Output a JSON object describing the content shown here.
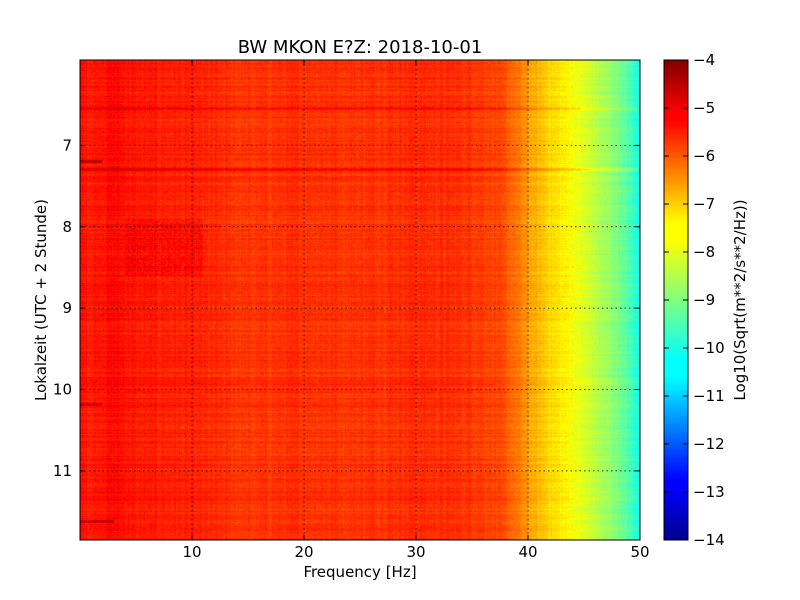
{
  "chart_data": {
    "type": "heatmap",
    "title": "BW MKON E?Z: 2018-10-01",
    "xlabel": "Frequency [Hz]",
    "ylabel": "Lokalzeit (UTC + 2 Stunde)",
    "xlim": [
      0,
      50
    ],
    "ylim": [
      11.85,
      5.95
    ],
    "x_ticks": [
      10,
      20,
      30,
      40,
      50
    ],
    "x_tick_labels": [
      "10",
      "20",
      "30",
      "40",
      "50"
    ],
    "y_ticks": [
      7,
      8,
      9,
      10,
      11
    ],
    "y_tick_labels": [
      "7",
      "8",
      "9",
      "10",
      "11"
    ],
    "grid": true,
    "colormap": "jet",
    "colorbar": {
      "label": "Log10(Sqrt(m**2/s**2/Hz))",
      "range": [
        -14,
        -4
      ],
      "ticks": [
        -4,
        -5,
        -6,
        -7,
        -8,
        -9,
        -10,
        -11,
        -12,
        -13,
        -14
      ],
      "tick_labels": [
        "−4",
        "−5",
        "−6",
        "−7",
        "−8",
        "−9",
        "−10",
        "−11",
        "−12",
        "−13",
        "−14"
      ]
    },
    "frequency_profile": {
      "frequency_hz": [
        0,
        1,
        3,
        5,
        10,
        15,
        20,
        25,
        30,
        35,
        37,
        38,
        39,
        40,
        41,
        42,
        43,
        44,
        45,
        46,
        47,
        48,
        49,
        50
      ],
      "level": [
        -5.4,
        -5.5,
        -5.3,
        -5.5,
        -5.6,
        -5.8,
        -5.7,
        -5.75,
        -5.65,
        -5.75,
        -5.9,
        -6.1,
        -6.4,
        -6.8,
        -7.1,
        -7.35,
        -7.6,
        -7.8,
        -8.1,
        -8.4,
        -8.7,
        -9.0,
        -9.5,
        -10.1
      ]
    },
    "horizontal_features": [
      {
        "time": 6.55,
        "f_from": 0,
        "f_to": 50,
        "delta": 0.45
      },
      {
        "time": 7.2,
        "f_from": 0,
        "f_to": 2,
        "delta": 0.9
      },
      {
        "time": 7.3,
        "f_from": 0,
        "f_to": 50,
        "delta": 0.5
      },
      {
        "time": 10.18,
        "f_from": 0,
        "f_to": 2,
        "delta": 0.6
      },
      {
        "time": 11.62,
        "f_from": 0,
        "f_to": 3,
        "delta": 0.8
      }
    ],
    "patches": [
      {
        "time_from": 7.9,
        "time_to": 8.6,
        "f_from": 4,
        "f_to": 11,
        "delta": 0.45
      }
    ]
  }
}
